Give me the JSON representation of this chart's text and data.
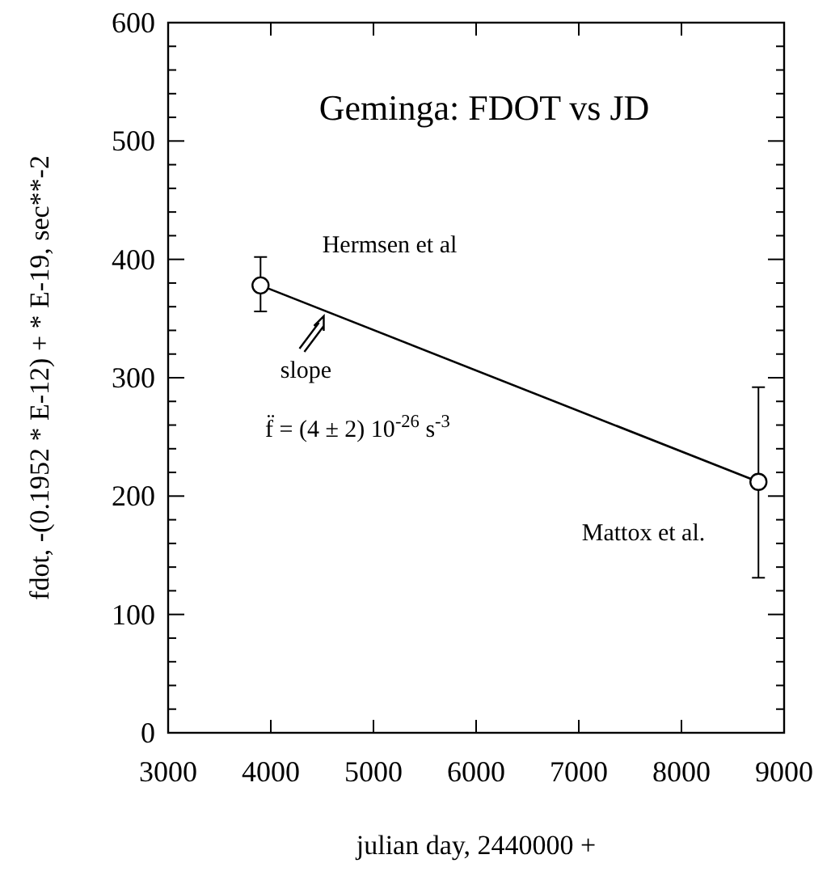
{
  "chart_data": {
    "type": "line",
    "title": "Geminga: FDOT vs JD",
    "xlabel": "julian day, 2440000 +",
    "ylabel": "fdot, -(0.1952 * E-12) + * E-19, sec**-2",
    "x": [
      3900,
      8750
    ],
    "series": [
      {
        "color": "#000000",
        "values": [
          378,
          212
        ],
        "errors": [
          [
            356,
            402
          ],
          [
            131,
            292
          ]
        ]
      }
    ],
    "marker": "circle",
    "line_style": "solid",
    "xlim": [
      3000,
      9000
    ],
    "xticks": [
      3000,
      4000,
      5000,
      6000,
      7000,
      8000,
      9000
    ],
    "ylim": [
      0,
      600
    ],
    "yticks": [
      0,
      {
        "value": 20,
        "label": null
      },
      {
        "value": 40,
        "label": null
      },
      {
        "value": 60,
        "label": null
      },
      {
        "value": 80,
        "label": null
      },
      100,
      {
        "value": 120,
        "label": null
      },
      {
        "value": 140,
        "label": null
      },
      {
        "value": 160,
        "label": null
      },
      {
        "value": 180,
        "label": null
      },
      200,
      {
        "value": 220,
        "label": null
      },
      {
        "value": 240,
        "label": null
      },
      {
        "value": 260,
        "label": null
      },
      {
        "value": 280,
        "label": null
      },
      300,
      {
        "value": 320,
        "label": null
      },
      {
        "value": 340,
        "label": null
      },
      {
        "value": 360,
        "label": null
      },
      {
        "value": 380,
        "label": null
      },
      400,
      {
        "value": 420,
        "label": null
      },
      {
        "value": 440,
        "label": null
      },
      {
        "value": 460,
        "label": null
      },
      {
        "value": 480,
        "label": null
      },
      500,
      {
        "value": 520,
        "label": null
      },
      {
        "value": 540,
        "label": null
      },
      {
        "value": 560,
        "label": null
      },
      {
        "value": 580,
        "label": null
      },
      600
    ],
    "annotations": [
      "Hermsen et al",
      "Mattox et al.",
      {
        "text": "slope",
        "x": 4500,
        "y": 352
      },
      "f̈ = (4 ± 2) 10$^{-26}$ s$^{-3}$"
    ]
  }
}
